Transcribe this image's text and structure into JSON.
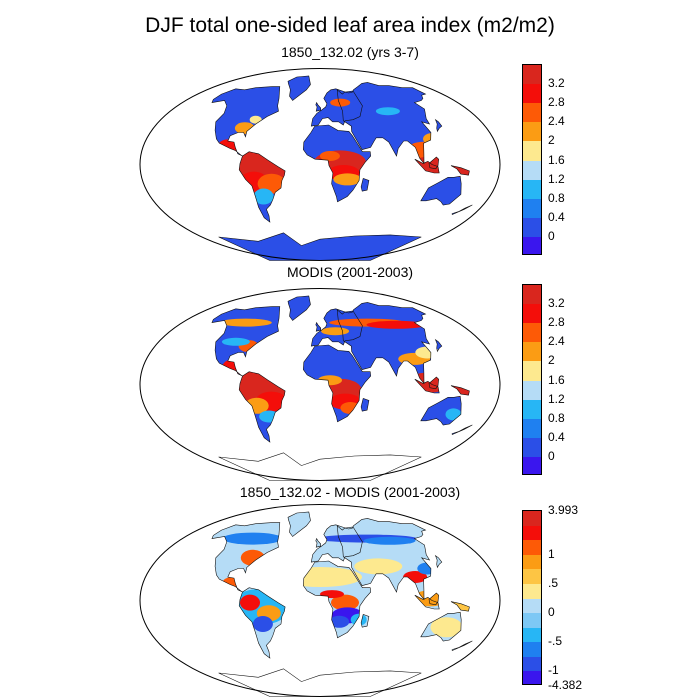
{
  "title": "DJF total one-sided leaf area index (m2/m2)",
  "panels": [
    {
      "subtitle": "1850_132.02 (yrs 3-7)"
    },
    {
      "subtitle": "MODIS (2001-2003)"
    },
    {
      "subtitle": "1850_132.02 - MODIS (2001-2003)"
    }
  ],
  "colorbars": {
    "lai": {
      "labels": [
        "3.2",
        "2.8",
        "2.4",
        "2",
        "1.6",
        "1.2",
        "0.8",
        "0.4",
        "0"
      ],
      "colors": [
        "#d9261e",
        "#f40e0a",
        "#fd5a06",
        "#fb9c14",
        "#fde98f",
        "#b5dcf6",
        "#27b6f5",
        "#1f80f0",
        "#2b4fe7",
        "#3a16ee"
      ]
    },
    "diff": {
      "labels": [
        "3.993",
        "1",
        ".5",
        "0",
        "-.5",
        "-1",
        "-4.382"
      ],
      "colors": [
        "#d9261e",
        "#f40e0a",
        "#fd5a06",
        "#fb9c14",
        "#fdc544",
        "#fde98f",
        "#b5dcf6",
        "#7dc8f5",
        "#27b6f5",
        "#1f80f0",
        "#2b4fe7",
        "#3a16ee"
      ]
    }
  },
  "palette": {
    "ocean": "#ffffff",
    "low_lai": "#2b4fe7",
    "high_lai": "#d9261e",
    "neutral": "#fde98f"
  }
}
